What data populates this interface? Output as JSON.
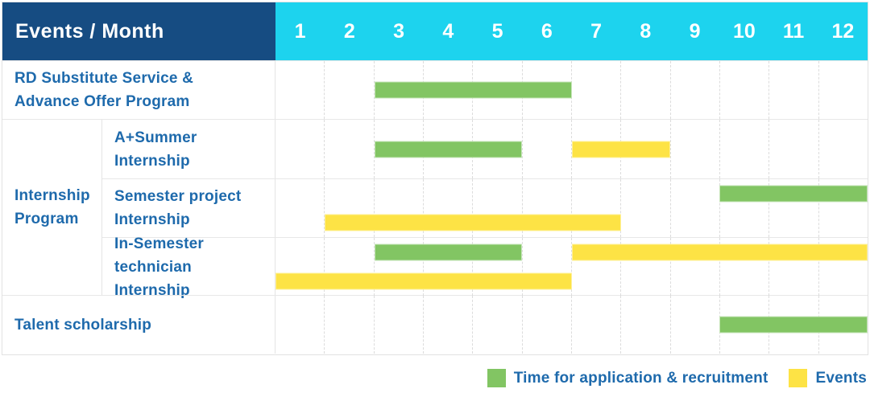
{
  "header": {
    "title": "Events / Month",
    "months": [
      "1",
      "2",
      "3",
      "4",
      "5",
      "6",
      "7",
      "8",
      "9",
      "10",
      "11",
      "12"
    ]
  },
  "group": {
    "label": "Internship\nProgram"
  },
  "rows": [
    {
      "label": "RD Substitute Service &\nAdvance Offer Program",
      "tracks": [
        [
          {
            "color": "green",
            "start_month": 3,
            "end_month": 6
          }
        ]
      ]
    },
    {
      "label": "A+Summer\nInternship",
      "tracks": [
        [
          {
            "color": "green",
            "start_month": 3,
            "end_month": 5
          },
          {
            "color": "yellow",
            "start_month": 7,
            "end_month": 8
          }
        ]
      ]
    },
    {
      "label": "Semester project\nInternship",
      "tracks": [
        [
          {
            "color": "green",
            "start_month": 10,
            "end_month": 12
          }
        ],
        [
          {
            "color": "yellow",
            "start_month": 2,
            "end_month": 7
          }
        ]
      ]
    },
    {
      "label": "In-Semester\ntechnician Internship",
      "tracks": [
        [
          {
            "color": "green",
            "start_month": 3,
            "end_month": 5
          },
          {
            "color": "yellow",
            "start_month": 7,
            "end_month": 12
          }
        ],
        [
          {
            "color": "yellow",
            "start_month": 1,
            "end_month": 6
          }
        ]
      ]
    },
    {
      "label": "Talent scholarship",
      "tracks": [
        [
          {
            "color": "green",
            "start_month": 10,
            "end_month": 12
          }
        ]
      ]
    }
  ],
  "legend": [
    {
      "color": "green",
      "label": "Time for application & recruitment"
    },
    {
      "color": "yellow",
      "label": "Events"
    }
  ],
  "colors": {
    "header-blue": "#164c82",
    "month-cyan": "#1dd3ee",
    "bar-green": "#82c563",
    "bar-yellow": "#fde345",
    "label-blue": "#1e6aac",
    "grid-line": "#e2e2e2"
  },
  "chart_data": {
    "type": "table",
    "subtype": "gantt",
    "title": "Events / Month",
    "x_axis": {
      "label": "Month",
      "ticks": [
        1,
        2,
        3,
        4,
        5,
        6,
        7,
        8,
        9,
        10,
        11,
        12
      ],
      "range": [
        1,
        12
      ]
    },
    "legend_entries": [
      "Time for application & recruitment",
      "Events"
    ],
    "legend_position": "bottom-right",
    "grid": "dashed vertical month lines",
    "series": [
      {
        "name": "RD Substitute Service & Advance Offer Program",
        "application_recruitment_months": [
          [
            3,
            6
          ]
        ],
        "event_months": []
      },
      {
        "name": "Internship Program / A+Summer Internship",
        "application_recruitment_months": [
          [
            3,
            5
          ]
        ],
        "event_months": [
          [
            7,
            8
          ]
        ]
      },
      {
        "name": "Internship Program / Semester project Internship",
        "application_recruitment_months": [
          [
            10,
            12
          ]
        ],
        "event_months": [
          [
            2,
            7
          ]
        ]
      },
      {
        "name": "Internship Program / In-Semester technician Internship",
        "application_recruitment_months": [
          [
            3,
            5
          ]
        ],
        "event_months": [
          [
            7,
            12
          ],
          [
            1,
            6
          ]
        ]
      },
      {
        "name": "Talent scholarship",
        "application_recruitment_months": [
          [
            10,
            12
          ]
        ],
        "event_months": []
      }
    ]
  }
}
